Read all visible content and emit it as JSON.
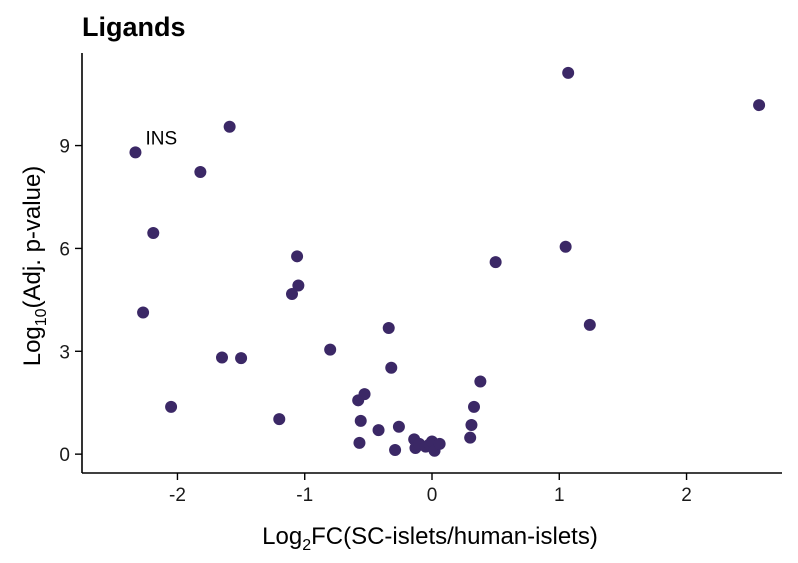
{
  "chart_data": {
    "type": "scatter",
    "title": "Ligands",
    "xlabel": {
      "prefix": "Log",
      "sub": "2",
      "suffix": "FC(SC-islets/human-islets)"
    },
    "ylabel": {
      "prefix": "Log",
      "sub": "10",
      "suffix": "(Adj. p-value)"
    },
    "xlim": [
      -2.75,
      2.75
    ],
    "ylim": [
      -0.55,
      11.7
    ],
    "xticks": [
      -2,
      -1,
      0,
      1,
      2
    ],
    "yticks": [
      0,
      3,
      6,
      9
    ],
    "point_color": "#3b2866",
    "grid": false,
    "legend": "none",
    "points": [
      {
        "x": -2.33,
        "y": 8.8,
        "label": "INS"
      },
      {
        "x": -2.27,
        "y": 4.13
      },
      {
        "x": -2.19,
        "y": 6.45
      },
      {
        "x": -2.05,
        "y": 1.38
      },
      {
        "x": -1.82,
        "y": 8.23
      },
      {
        "x": -1.65,
        "y": 2.82
      },
      {
        "x": -1.59,
        "y": 9.55
      },
      {
        "x": -1.5,
        "y": 2.8
      },
      {
        "x": -1.2,
        "y": 1.02
      },
      {
        "x": -1.1,
        "y": 4.67
      },
      {
        "x": -1.06,
        "y": 5.77
      },
      {
        "x": -1.05,
        "y": 4.92
      },
      {
        "x": -0.8,
        "y": 3.05
      },
      {
        "x": -0.58,
        "y": 1.57
      },
      {
        "x": -0.57,
        "y": 0.33
      },
      {
        "x": -0.56,
        "y": 0.97
      },
      {
        "x": -0.53,
        "y": 1.75
      },
      {
        "x": -0.42,
        "y": 0.7
      },
      {
        "x": -0.34,
        "y": 3.68
      },
      {
        "x": -0.32,
        "y": 2.52
      },
      {
        "x": -0.29,
        "y": 0.12
      },
      {
        "x": -0.26,
        "y": 0.8
      },
      {
        "x": -0.14,
        "y": 0.43
      },
      {
        "x": -0.13,
        "y": 0.18
      },
      {
        "x": -0.1,
        "y": 0.3
      },
      {
        "x": -0.05,
        "y": 0.22
      },
      {
        "x": -0.02,
        "y": 0.28
      },
      {
        "x": 0.0,
        "y": 0.37
      },
      {
        "x": 0.02,
        "y": 0.1
      },
      {
        "x": 0.06,
        "y": 0.3
      },
      {
        "x": 0.3,
        "y": 0.48
      },
      {
        "x": 0.31,
        "y": 0.85
      },
      {
        "x": 0.33,
        "y": 1.38
      },
      {
        "x": 0.38,
        "y": 2.12
      },
      {
        "x": 0.5,
        "y": 5.6
      },
      {
        "x": 1.05,
        "y": 6.05
      },
      {
        "x": 1.07,
        "y": 11.12
      },
      {
        "x": 1.24,
        "y": 3.77
      },
      {
        "x": 2.57,
        "y": 10.18
      }
    ]
  }
}
